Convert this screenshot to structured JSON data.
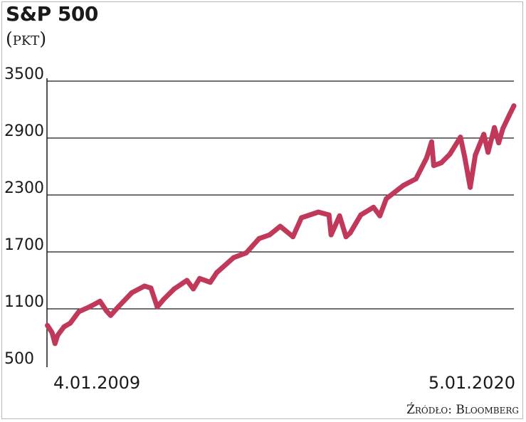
{
  "chart_data": {
    "type": "line",
    "title": "S&P 500",
    "subtitle": "(pkt)",
    "source": "Źródło: Bloomberg",
    "xlabel": "",
    "ylabel": "",
    "x_start_label": "4.01.2009",
    "x_end_label": "5.01.2020",
    "ylim": [
      500,
      3500
    ],
    "yticks": [
      "3500",
      "2900",
      "2300",
      "1700",
      "1100",
      "500"
    ],
    "grid": true,
    "line_color": "#c0395a",
    "series": [
      {
        "values": [
          [
            2009.01,
            925
          ],
          [
            2009.12,
            850
          ],
          [
            2009.19,
            735
          ],
          [
            2009.25,
            820
          ],
          [
            2009.4,
            910
          ],
          [
            2009.55,
            950
          ],
          [
            2009.75,
            1070
          ],
          [
            2010.0,
            1120
          ],
          [
            2010.25,
            1180
          ],
          [
            2010.4,
            1080
          ],
          [
            2010.5,
            1030
          ],
          [
            2010.7,
            1130
          ],
          [
            2011.0,
            1270
          ],
          [
            2011.3,
            1340
          ],
          [
            2011.45,
            1320
          ],
          [
            2011.6,
            1120
          ],
          [
            2011.75,
            1200
          ],
          [
            2012.0,
            1310
          ],
          [
            2012.3,
            1400
          ],
          [
            2012.45,
            1310
          ],
          [
            2012.6,
            1420
          ],
          [
            2012.85,
            1380
          ],
          [
            2013.0,
            1480
          ],
          [
            2013.4,
            1640
          ],
          [
            2013.7,
            1690
          ],
          [
            2014.0,
            1840
          ],
          [
            2014.25,
            1880
          ],
          [
            2014.5,
            1970
          ],
          [
            2014.8,
            1860
          ],
          [
            2015.0,
            2060
          ],
          [
            2015.4,
            2120
          ],
          [
            2015.65,
            2090
          ],
          [
            2015.7,
            1880
          ],
          [
            2015.9,
            2080
          ],
          [
            2016.05,
            1860
          ],
          [
            2016.15,
            1900
          ],
          [
            2016.4,
            2090
          ],
          [
            2016.7,
            2170
          ],
          [
            2016.85,
            2080
          ],
          [
            2017.0,
            2260
          ],
          [
            2017.4,
            2400
          ],
          [
            2017.7,
            2470
          ],
          [
            2017.95,
            2690
          ],
          [
            2018.07,
            2860
          ],
          [
            2018.12,
            2610
          ],
          [
            2018.3,
            2640
          ],
          [
            2018.5,
            2730
          ],
          [
            2018.75,
            2910
          ],
          [
            2018.85,
            2700
          ],
          [
            2018.98,
            2380
          ],
          [
            2019.1,
            2720
          ],
          [
            2019.3,
            2940
          ],
          [
            2019.4,
            2750
          ],
          [
            2019.55,
            3010
          ],
          [
            2019.65,
            2850
          ],
          [
            2019.75,
            3000
          ],
          [
            2019.9,
            3140
          ],
          [
            2020.01,
            3240
          ]
        ]
      }
    ]
  }
}
